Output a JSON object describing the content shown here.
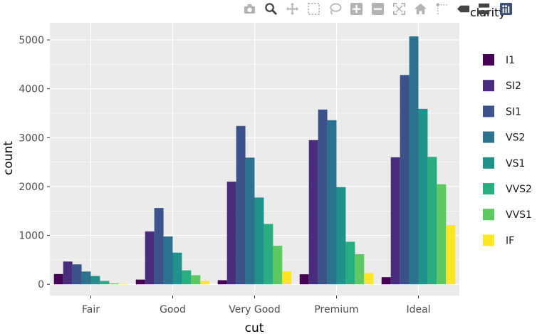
{
  "modebar": {
    "buttons": [
      {
        "icon": "camera-icon",
        "name": "download-plot-button"
      },
      {
        "icon": "zoom-icon",
        "name": "zoom-button"
      },
      {
        "icon": "pan-icon",
        "name": "pan-button"
      },
      {
        "icon": "box-select-icon",
        "name": "box-select-button"
      },
      {
        "icon": "lasso-select-icon",
        "name": "lasso-select-button"
      },
      {
        "icon": "zoom-in-icon",
        "name": "zoom-in-button"
      },
      {
        "icon": "zoom-out-icon",
        "name": "zoom-out-button"
      },
      {
        "icon": "autoscale-icon",
        "name": "autoscale-button"
      },
      {
        "icon": "home-icon",
        "name": "reset-axes-button"
      },
      {
        "icon": "spike-lines-icon",
        "name": "spike-lines-button"
      },
      {
        "icon": "hover-closest-icon",
        "name": "hover-closest-button"
      },
      {
        "icon": "hover-compare-icon",
        "name": "hover-compare-button"
      },
      {
        "icon": "plotly-logo-icon",
        "name": "plotly-logo"
      }
    ]
  },
  "colors": {
    "panel_bg": "#ebebeb",
    "grid": "#ffffff",
    "active_modebar": "#444444",
    "inactive_modebar": "#b3b3b3"
  },
  "chart_data": {
    "type": "bar",
    "title": "",
    "xlabel": "cut",
    "ylabel": "count",
    "ylim": [
      -230,
      5350
    ],
    "yticks": [
      0,
      1000,
      2000,
      3000,
      4000,
      5000
    ],
    "grid": true,
    "legend_title": "clarity",
    "legend_position": "right",
    "categories": [
      "Fair",
      "Good",
      "Very Good",
      "Premium",
      "Ideal"
    ],
    "series": [
      {
        "name": "I1",
        "color": "#440154",
        "values": [
          210,
          96,
          84,
          205,
          146
        ]
      },
      {
        "name": "SI2",
        "color": "#472d7b",
        "values": [
          466,
          1081,
          2100,
          2949,
          2598
        ]
      },
      {
        "name": "SI1",
        "color": "#3b528b",
        "values": [
          408,
          1560,
          3240,
          3575,
          4282
        ]
      },
      {
        "name": "VS2",
        "color": "#2c728e",
        "values": [
          261,
          978,
          2591,
          3357,
          5071
        ]
      },
      {
        "name": "VS1",
        "color": "#21918c",
        "values": [
          170,
          648,
          1775,
          1989,
          3589
        ]
      },
      {
        "name": "VVS2",
        "color": "#28ae80",
        "values": [
          69,
          286,
          1235,
          870,
          2606
        ]
      },
      {
        "name": "VVS1",
        "color": "#5ec962",
        "values": [
          17,
          186,
          789,
          616,
          2047
        ]
      },
      {
        "name": "IF",
        "color": "#fde725",
        "values": [
          9,
          71,
          268,
          230,
          1212
        ]
      }
    ]
  }
}
